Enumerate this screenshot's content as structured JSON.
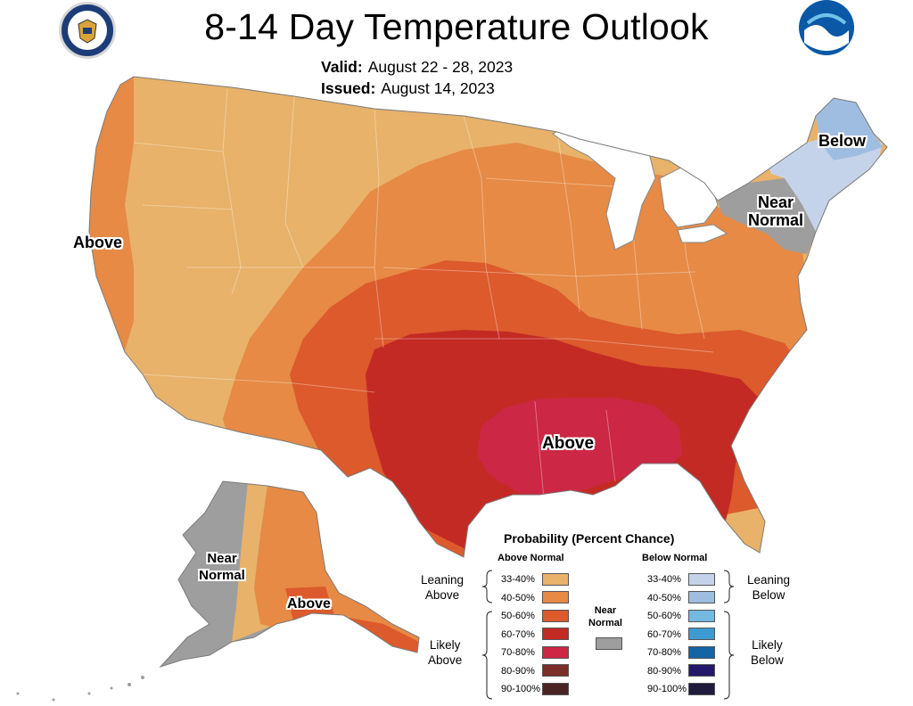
{
  "title": "8-14 Day Temperature Outlook",
  "valid": {
    "label": "Valid:",
    "value": "August 22 - 28, 2023"
  },
  "issued": {
    "label": "Issued:",
    "value": "August 14, 2023"
  },
  "logos": {
    "left": "commerce-seal-icon",
    "right": "noaa-logo-icon"
  },
  "colors": {
    "above_33_40": "#e8b26a",
    "above_40_50": "#e68a45",
    "above_50_60": "#dc5a2c",
    "above_60_70": "#c42a24",
    "above_70_80": "#cc2744",
    "above_80_90": "#7b2d2a",
    "above_90_100": "#4a2424",
    "near_normal": "#9e9e9e",
    "below_33_40": "#c5d3ea",
    "below_40_50": "#9fbde0",
    "below_50_60": "#74b9e0",
    "below_60_70": "#3d9bd4",
    "below_70_80": "#1465a6",
    "below_80_90": "#23176b",
    "below_90_100": "#1f1b3a",
    "great_lakes": "#ffffff",
    "outline": "#888888"
  },
  "map_labels": {
    "west": "Above",
    "southeast": "Above",
    "northeast_near": [
      "Near",
      "Normal"
    ],
    "northeast_below": "Below",
    "alaska_near": [
      "Near",
      "Normal"
    ],
    "alaska_above": "Above"
  },
  "legend": {
    "title": "Probability (Percent Chance)",
    "above_header": "Above Normal",
    "below_header": "Below Normal",
    "near_normal": [
      "Near",
      "Normal"
    ],
    "leaning_above": [
      "Leaning",
      "Above"
    ],
    "likely_above": [
      "Likely",
      "Above"
    ],
    "leaning_below": [
      "Leaning",
      "Below"
    ],
    "likely_below": [
      "Likely",
      "Below"
    ],
    "above_rows": [
      {
        "label": "33-40%",
        "color": "#e8b26a"
      },
      {
        "label": "40-50%",
        "color": "#e68a45"
      },
      {
        "label": "50-60%",
        "color": "#dc5a2c"
      },
      {
        "label": "60-70%",
        "color": "#c42a24"
      },
      {
        "label": "70-80%",
        "color": "#cc2744"
      },
      {
        "label": "80-90%",
        "color": "#7b2d2a"
      },
      {
        "label": "90-100%",
        "color": "#4a2424"
      }
    ],
    "below_rows": [
      {
        "label": "33-40%",
        "color": "#c5d3ea"
      },
      {
        "label": "40-50%",
        "color": "#9fbde0"
      },
      {
        "label": "50-60%",
        "color": "#74b9e0"
      },
      {
        "label": "60-70%",
        "color": "#3d9bd4"
      },
      {
        "label": "70-80%",
        "color": "#1465a6"
      },
      {
        "label": "80-90%",
        "color": "#23176b"
      },
      {
        "label": "90-100%",
        "color": "#1f1b3a"
      }
    ]
  }
}
